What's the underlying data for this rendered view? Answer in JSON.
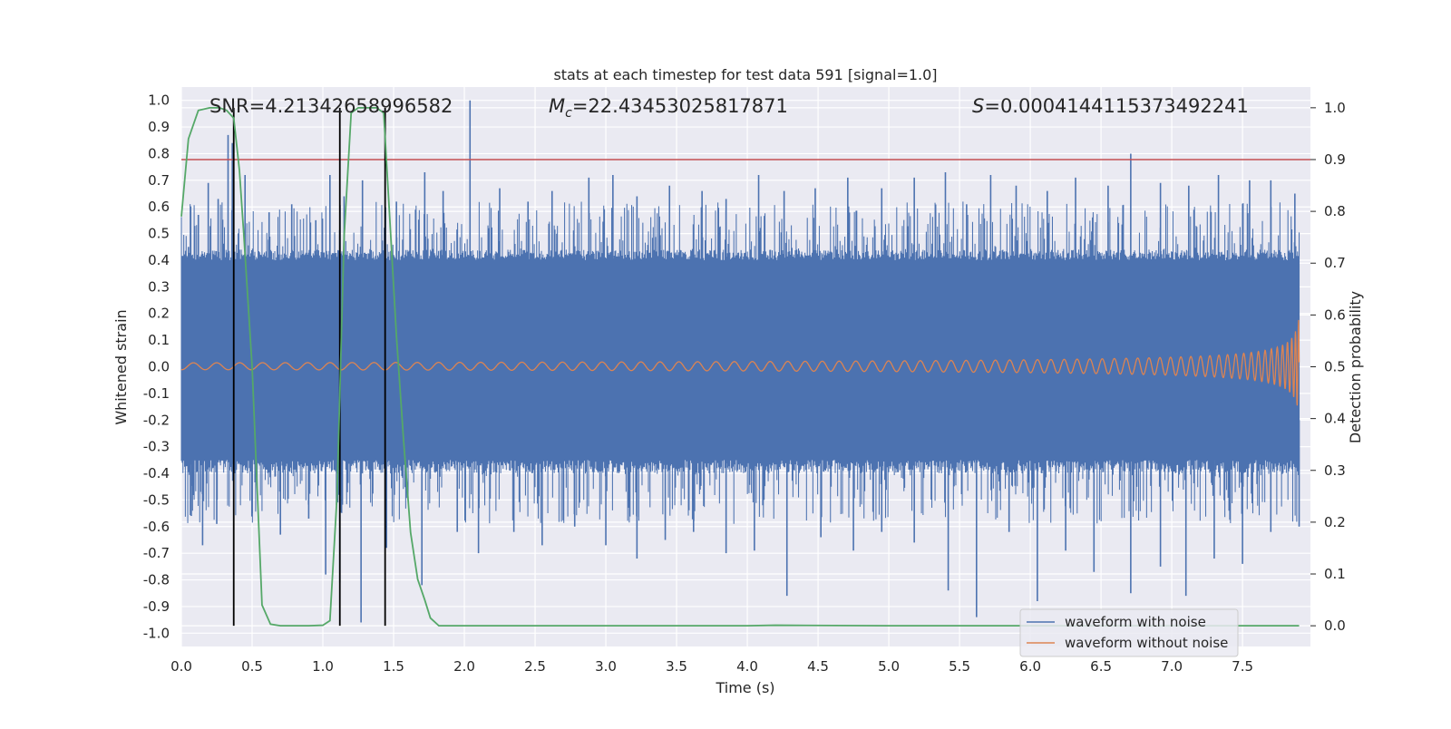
{
  "chart_data": {
    "type": "line",
    "title": "stats at each timestep for test data 591 [signal=1.0]",
    "xlabel": "Time (s)",
    "ylabel": "Whitened strain",
    "y2label": "Detection probability",
    "xlim": [
      0.0,
      7.98
    ],
    "ylim": [
      -1.05,
      1.05
    ],
    "y2lim": [
      -0.04,
      1.04
    ],
    "x_ticks": [
      "0.0",
      "0.5",
      "1.0",
      "1.5",
      "2.0",
      "2.5",
      "3.0",
      "3.5",
      "4.0",
      "4.5",
      "5.0",
      "5.5",
      "6.0",
      "6.5",
      "7.0",
      "7.5"
    ],
    "y_ticks": [
      "1.0",
      "0.9",
      "0.8",
      "0.7",
      "0.6",
      "0.5",
      "0.4",
      "0.3",
      "0.2",
      "0.1",
      "0.0",
      "-0.1",
      "-0.2",
      "-0.3",
      "-0.4",
      "-0.5",
      "-0.6",
      "-0.7",
      "-0.8",
      "-0.9",
      "-1.0"
    ],
    "y2_ticks": [
      "1.0",
      "0.9",
      "0.8",
      "0.7",
      "0.6",
      "0.5",
      "0.4",
      "0.3",
      "0.2",
      "0.1",
      "0.0"
    ],
    "grid": true,
    "legend_position": "lower-right",
    "annotations": {
      "snr": "SNR=4.21342658996582",
      "mc_symbol": "M",
      "mc_sub": "c",
      "mc_value": "=22.43453025817871",
      "s_symbol": "S",
      "s_value": "=0.0004144115373492241"
    },
    "threshold": {
      "axis": "y2",
      "value": 0.9,
      "color": "#c44e52"
    },
    "vertical_markers": [
      0.37,
      1.12,
      1.44
    ],
    "noise_envelope": {
      "name": "waveform with noise",
      "color": "#4c72b0",
      "core_band": [
        -0.35,
        0.4
      ],
      "spikes": [
        {
          "x": 0.05,
          "y": 0.45
        },
        {
          "x": 0.12,
          "y": 0.57
        },
        {
          "x": 0.19,
          "y": 0.69
        },
        {
          "x": 0.26,
          "y": 0.63
        },
        {
          "x": 0.33,
          "y": 0.87
        },
        {
          "x": 0.36,
          "y": 0.84
        },
        {
          "x": 0.45,
          "y": 0.72
        },
        {
          "x": 0.62,
          "y": 0.58
        },
        {
          "x": 0.78,
          "y": 0.61
        },
        {
          "x": 0.95,
          "y": 0.55
        },
        {
          "x": 1.05,
          "y": 0.72
        },
        {
          "x": 1.15,
          "y": 0.64
        },
        {
          "x": 1.28,
          "y": 0.7
        },
        {
          "x": 1.52,
          "y": 0.62
        },
        {
          "x": 1.72,
          "y": 0.73
        },
        {
          "x": 1.85,
          "y": 0.66
        },
        {
          "x": 2.04,
          "y": 1.0
        },
        {
          "x": 2.25,
          "y": 0.67
        },
        {
          "x": 2.45,
          "y": 0.62
        },
        {
          "x": 2.62,
          "y": 0.66
        },
        {
          "x": 2.88,
          "y": 0.71
        },
        {
          "x": 3.05,
          "y": 0.72
        },
        {
          "x": 3.22,
          "y": 0.64
        },
        {
          "x": 3.45,
          "y": 0.68
        },
        {
          "x": 3.68,
          "y": 0.66
        },
        {
          "x": 3.85,
          "y": 0.63
        },
        {
          "x": 4.08,
          "y": 0.72
        },
        {
          "x": 4.26,
          "y": 0.66
        },
        {
          "x": 4.48,
          "y": 0.67
        },
        {
          "x": 4.71,
          "y": 0.71
        },
        {
          "x": 4.95,
          "y": 0.67
        },
        {
          "x": 5.18,
          "y": 0.71
        },
        {
          "x": 5.4,
          "y": 0.73
        },
        {
          "x": 5.55,
          "y": 0.61
        },
        {
          "x": 5.72,
          "y": 0.72
        },
        {
          "x": 5.9,
          "y": 0.68
        },
        {
          "x": 6.12,
          "y": 0.66
        },
        {
          "x": 6.32,
          "y": 0.71
        },
        {
          "x": 6.55,
          "y": 0.68
        },
        {
          "x": 6.71,
          "y": 0.8
        },
        {
          "x": 6.92,
          "y": 0.69
        },
        {
          "x": 7.12,
          "y": 0.68
        },
        {
          "x": 7.33,
          "y": 0.72
        },
        {
          "x": 7.55,
          "y": 0.7
        },
        {
          "x": 7.7,
          "y": 0.7
        },
        {
          "x": 7.87,
          "y": 0.65
        },
        {
          "x": 0.07,
          "y": -0.56
        },
        {
          "x": 0.15,
          "y": -0.67
        },
        {
          "x": 0.25,
          "y": -0.59
        },
        {
          "x": 0.5,
          "y": -0.55
        },
        {
          "x": 0.7,
          "y": -0.63
        },
        {
          "x": 0.9,
          "y": -0.57
        },
        {
          "x": 1.02,
          "y": -0.78
        },
        {
          "x": 1.12,
          "y": -0.81
        },
        {
          "x": 1.27,
          "y": -0.96
        },
        {
          "x": 1.45,
          "y": -0.68
        },
        {
          "x": 1.7,
          "y": -0.82
        },
        {
          "x": 1.95,
          "y": -0.62
        },
        {
          "x": 2.1,
          "y": -0.7
        },
        {
          "x": 2.35,
          "y": -0.62
        },
        {
          "x": 2.55,
          "y": -0.67
        },
        {
          "x": 2.78,
          "y": -0.6
        },
        {
          "x": 3.0,
          "y": -0.67
        },
        {
          "x": 3.22,
          "y": -0.72
        },
        {
          "x": 3.42,
          "y": -0.65
        },
        {
          "x": 3.62,
          "y": -0.62
        },
        {
          "x": 3.85,
          "y": -0.7
        },
        {
          "x": 4.05,
          "y": -0.69
        },
        {
          "x": 4.28,
          "y": -0.86
        },
        {
          "x": 4.52,
          "y": -0.64
        },
        {
          "x": 4.75,
          "y": -0.69
        },
        {
          "x": 4.95,
          "y": -0.62
        },
        {
          "x": 5.18,
          "y": -0.66
        },
        {
          "x": 5.42,
          "y": -0.84
        },
        {
          "x": 5.62,
          "y": -0.94
        },
        {
          "x": 5.85,
          "y": -0.62
        },
        {
          "x": 6.05,
          "y": -0.88
        },
        {
          "x": 6.25,
          "y": -0.69
        },
        {
          "x": 6.45,
          "y": -0.77
        },
        {
          "x": 6.71,
          "y": -0.85
        },
        {
          "x": 6.92,
          "y": -0.75
        },
        {
          "x": 7.1,
          "y": -0.86
        },
        {
          "x": 7.3,
          "y": -0.72
        },
        {
          "x": 7.5,
          "y": -0.74
        },
        {
          "x": 7.7,
          "y": -0.62
        },
        {
          "x": 7.9,
          "y": -0.6
        }
      ]
    },
    "clean_waveform": {
      "name": "waveform without noise",
      "color": "#dd8452",
      "x_start": 0.0,
      "x_end": 7.9,
      "peak_amplitude": 0.19
    },
    "probability": {
      "color": "#55a868",
      "x": [
        0.0,
        0.05,
        0.12,
        0.2,
        0.27,
        0.32,
        0.37,
        0.41,
        0.44,
        0.5,
        0.57,
        0.63,
        0.7,
        0.8,
        0.9,
        1.0,
        1.05,
        1.1,
        1.15,
        1.2,
        1.25,
        1.32,
        1.38,
        1.43,
        1.47,
        1.52,
        1.57,
        1.62,
        1.67,
        1.72,
        1.76,
        1.82,
        2.0,
        3.0,
        4.0,
        4.2,
        5.0,
        6.0,
        7.0,
        7.9
      ],
      "y": [
        0.79,
        0.94,
        0.995,
        1.0,
        1.0,
        0.995,
        0.98,
        0.88,
        0.76,
        0.5,
        0.04,
        0.003,
        0.0,
        0.0,
        0.0,
        0.001,
        0.01,
        0.25,
        0.75,
        0.99,
        1.0,
        1.0,
        1.0,
        0.99,
        0.8,
        0.56,
        0.36,
        0.18,
        0.09,
        0.05,
        0.015,
        0.0,
        0.0,
        0.0,
        0.0,
        0.001,
        0.0,
        0.0,
        0.0,
        0.0
      ]
    }
  }
}
